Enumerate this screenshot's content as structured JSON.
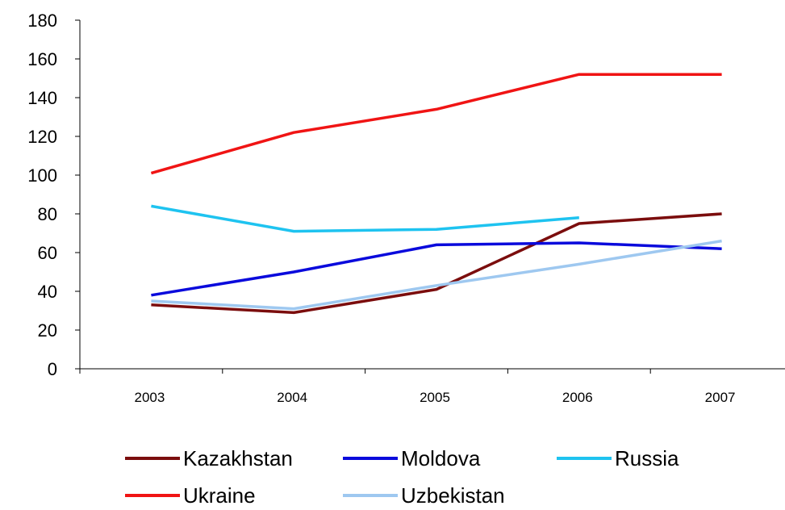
{
  "chart_data": {
    "type": "line",
    "title": "",
    "xlabel": "",
    "ylabel": "",
    "x": [
      "2003",
      "2004",
      "2005",
      "2006",
      "2007"
    ],
    "ylim": [
      0,
      180
    ],
    "yticks": [
      0,
      20,
      40,
      60,
      80,
      100,
      120,
      140,
      160,
      180
    ],
    "grid": false,
    "legend": "bottom",
    "series": [
      {
        "name": "Kazakhstan",
        "color": "#7b0d0d",
        "values": [
          33,
          29,
          41,
          75,
          80
        ]
      },
      {
        "name": "Moldova",
        "color": "#0a0adc",
        "values": [
          38,
          50,
          64,
          65,
          62
        ]
      },
      {
        "name": "Russia",
        "color": "#1ec3f0",
        "values": [
          84,
          71,
          72,
          78,
          null
        ]
      },
      {
        "name": "Ukraine",
        "color": "#f01414",
        "values": [
          101,
          122,
          134,
          152,
          152
        ]
      },
      {
        "name": "Uzbekistan",
        "color": "#9ec8f0",
        "values": [
          35,
          31,
          43,
          54,
          66
        ]
      }
    ]
  }
}
